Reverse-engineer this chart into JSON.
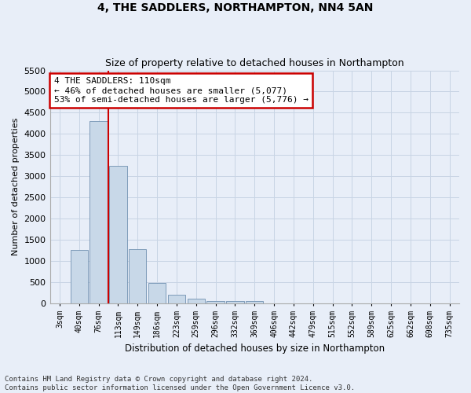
{
  "title": "4, THE SADDLERS, NORTHAMPTON, NN4 5AN",
  "subtitle": "Size of property relative to detached houses in Northampton",
  "xlabel": "Distribution of detached houses by size in Northampton",
  "ylabel": "Number of detached properties",
  "footer_line1": "Contains HM Land Registry data © Crown copyright and database right 2024.",
  "footer_line2": "Contains public sector information licensed under the Open Government Licence v3.0.",
  "bar_labels": [
    "3sqm",
    "40sqm",
    "76sqm",
    "113sqm",
    "149sqm",
    "186sqm",
    "223sqm",
    "259sqm",
    "296sqm",
    "332sqm",
    "369sqm",
    "406sqm",
    "442sqm",
    "479sqm",
    "515sqm",
    "552sqm",
    "589sqm",
    "625sqm",
    "662sqm",
    "698sqm",
    "735sqm"
  ],
  "bar_values": [
    0,
    1250,
    4300,
    3250,
    1270,
    480,
    200,
    100,
    60,
    50,
    50,
    0,
    0,
    0,
    0,
    0,
    0,
    0,
    0,
    0,
    0
  ],
  "bar_color": "#c8d8e8",
  "bar_edge_color": "#7090b0",
  "highlight_bar_index": 2,
  "highlight_line_color": "#cc0000",
  "ylim": [
    0,
    5500
  ],
  "yticks": [
    0,
    500,
    1000,
    1500,
    2000,
    2500,
    3000,
    3500,
    4000,
    4500,
    5000,
    5500
  ],
  "annotation_text": "4 THE SADDLERS: 110sqm\n← 46% of detached houses are smaller (5,077)\n53% of semi-detached houses are larger (5,776) →",
  "annotation_box_color": "#ffffff",
  "annotation_border_color": "#cc0000",
  "grid_color": "#c8d4e4",
  "background_color": "#e8eef8",
  "title_fontsize": 10,
  "subtitle_fontsize": 9
}
